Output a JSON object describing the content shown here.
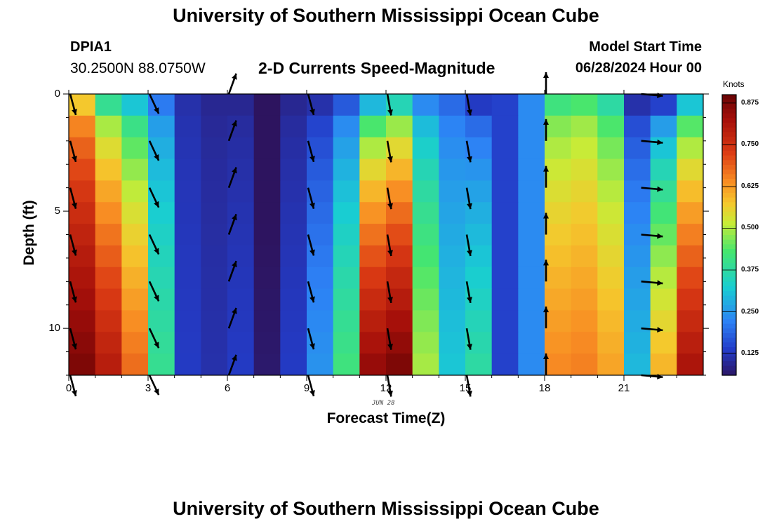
{
  "page": {
    "title_top": "University of Southern Mississippi Ocean Cube",
    "title_bottom": "University of Southern Mississippi Ocean Cube",
    "station_id": "DPIA1",
    "station_coords": "30.2500N  88.0750W",
    "chart_heading": "2-D Currents Speed-Magnitude",
    "model_start_label": "Model Start Time",
    "model_start_value": "06/28/2024 Hour 00"
  },
  "colors": {
    "arrow": "#000000",
    "axis": "#000000"
  },
  "chart_data": {
    "type": "heatmap",
    "title": "2-D Currents Speed-Magnitude",
    "xlabel": "Forecast Time(Z)",
    "ylabel": "Depth (ft)",
    "date_label": "JUN 28",
    "xlim": [
      0,
      23
    ],
    "ylim": [
      0,
      12
    ],
    "x_ticks": [
      0,
      3,
      6,
      9,
      12,
      15,
      18,
      21
    ],
    "y_ticks": [
      0,
      5,
      10
    ],
    "hours": [
      0,
      1,
      2,
      3,
      4,
      5,
      6,
      7,
      8,
      9,
      10,
      11,
      12,
      13,
      14,
      15,
      16,
      17,
      18,
      19,
      20,
      21,
      22,
      23
    ],
    "depth_levels": [
      0,
      1,
      2,
      3,
      4,
      5,
      6,
      7,
      8,
      9,
      10,
      11,
      12
    ],
    "speed_profile_knots": [
      [
        0.58,
        0.4,
        0.32,
        0.22,
        0.12,
        0.1,
        0.1,
        0.04,
        0.1,
        0.12,
        0.18,
        0.3,
        0.36,
        0.24,
        0.2,
        0.14,
        0.15,
        0.24,
        0.42,
        0.44,
        0.38,
        0.12,
        0.15,
        0.32
      ],
      [
        0.88,
        0.8,
        0.68,
        0.4,
        0.14,
        0.12,
        0.14,
        0.07,
        0.14,
        0.25,
        0.42,
        0.85,
        0.88,
        0.5,
        0.32,
        0.38,
        0.15,
        0.24,
        0.65,
        0.66,
        0.62,
        0.3,
        0.6,
        0.82
      ]
    ],
    "colorbar": {
      "label": "Knots",
      "min": 0.06,
      "max": 0.9,
      "ticks": [
        0.125,
        0.25,
        0.375,
        0.5,
        0.625,
        0.75,
        0.875
      ],
      "tick_labels": [
        "0.125",
        "0.250",
        "0.375",
        "0.500",
        "0.625",
        "0.750",
        "0.875"
      ]
    },
    "arrows": [
      {
        "hour": 0,
        "dir_deg": 165
      },
      {
        "hour": 3,
        "dir_deg": 155
      },
      {
        "hour": 6,
        "dir_deg": 20
      },
      {
        "hour": 9,
        "dir_deg": 165
      },
      {
        "hour": 12,
        "dir_deg": 170
      },
      {
        "hour": 15,
        "dir_deg": 170
      },
      {
        "hour": 18,
        "dir_deg": 0
      },
      {
        "hour": 21.6,
        "dir_deg": 95
      }
    ],
    "arrow_depths": [
      0,
      2,
      4,
      6,
      8,
      10,
      12
    ]
  }
}
